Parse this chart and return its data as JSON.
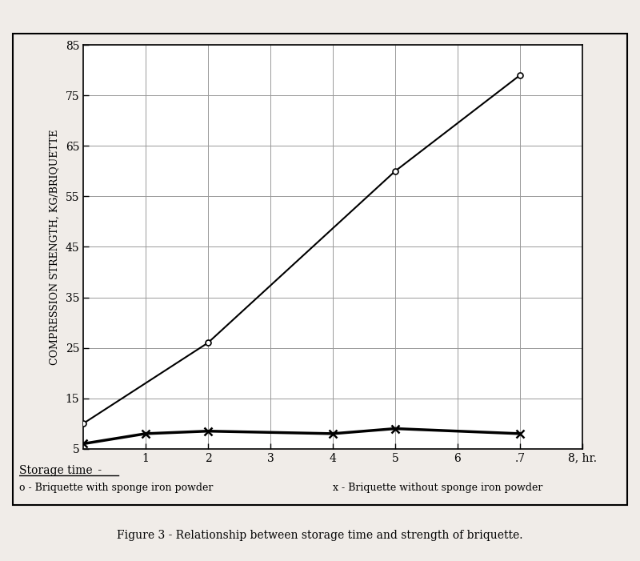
{
  "title": "Figure 3 - Relationship between storage time and strength of briquette.",
  "ylabel": "COMPRESSION STRENGTH, KG/BRIQUETTE",
  "xlim": [
    0,
    8
  ],
  "ylim": [
    5,
    85
  ],
  "xticks": [
    1,
    2,
    3,
    4,
    5,
    6,
    7,
    8
  ],
  "yticks": [
    5,
    15,
    25,
    35,
    45,
    55,
    65,
    75,
    85
  ],
  "series1_x": [
    0,
    2,
    5,
    7
  ],
  "series1_y": [
    10,
    26,
    60,
    79
  ],
  "series2_x": [
    0,
    1,
    2,
    4,
    5,
    7
  ],
  "series2_y": [
    6,
    8,
    8.5,
    8,
    9,
    8
  ],
  "series1_label": "o - Briquette with sponge iron powder",
  "series2_label": "x - Briquette without sponge iron powder",
  "xtick_labels": [
    "1",
    "2",
    "3",
    "4",
    "5",
    "6",
    ".7",
    "8, hr."
  ],
  "ytick_labels": [
    "5",
    "15",
    "25",
    "35",
    "45",
    "55",
    "65",
    "75",
    "85"
  ],
  "line_color": "black",
  "bg_color": "#f0ece8",
  "plot_bg": "white",
  "grid_color": "#999999",
  "storage_time_label": "Storage time -"
}
